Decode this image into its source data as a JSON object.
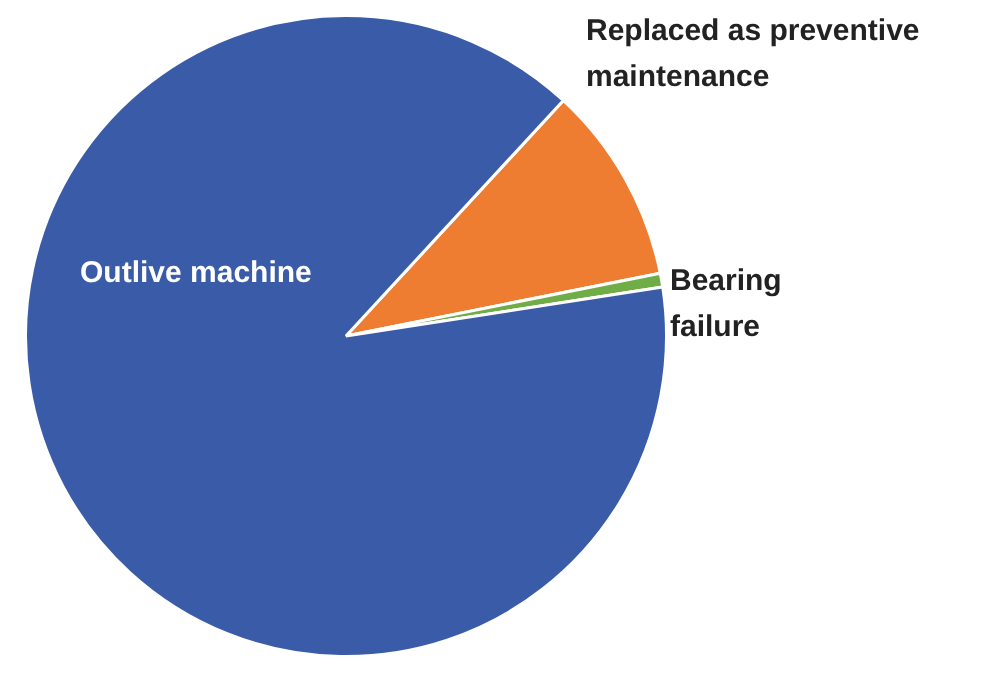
{
  "chart_data": {
    "type": "pie",
    "categories": [
      "Replaced as preventive maintenance",
      "Bearing failure",
      "Outlive machine"
    ],
    "values": [
      10,
      0.7,
      89.3
    ],
    "colors": [
      "#ee7d31",
      "#70ad47",
      "#3a5ca8"
    ]
  }
}
